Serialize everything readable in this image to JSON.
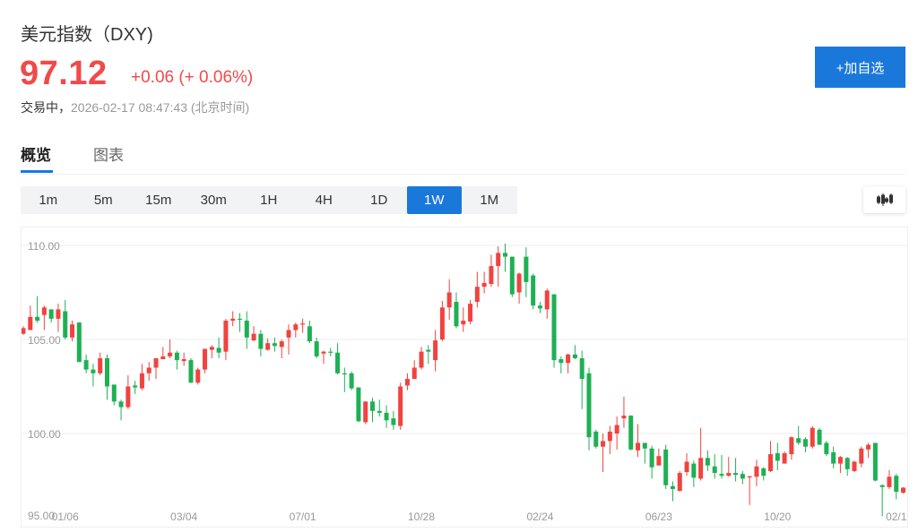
{
  "header": {
    "title": "美元指数（DXY)",
    "price": "97.12",
    "change": "+0.06 (+ 0.06%)",
    "status": "交易中，",
    "timestamp": "2026-02-17 08:47:43",
    "timezone_note": "(北京时间)",
    "watchlist_button": "+加自选"
  },
  "colors": {
    "up": "#f0433f",
    "down": "#1eb054",
    "accent": "#1a78db",
    "price": "#f04a4a"
  },
  "tabs": [
    {
      "label": "概览",
      "active": true
    },
    {
      "label": "图表",
      "active": false
    }
  ],
  "intervals": [
    {
      "label": "1m"
    },
    {
      "label": "5m"
    },
    {
      "label": "15m"
    },
    {
      "label": "30m"
    },
    {
      "label": "1H"
    },
    {
      "label": "4H"
    },
    {
      "label": "1D"
    },
    {
      "label": "1W",
      "active": true
    },
    {
      "label": "1M"
    }
  ],
  "chart_type_icon": "candlestick-icon",
  "chart_data": {
    "type": "candlestick",
    "interval": "1W",
    "y_ticks": [
      "110.00",
      "105.00",
      "100.00",
      "95.00"
    ],
    "y_tick_values": [
      110,
      105,
      100,
      95
    ],
    "ylim": [
      95,
      110
    ],
    "grid": true,
    "x_tick_labels": [
      {
        "label": "01/06",
        "candle": 6
      },
      {
        "label": "03/04",
        "candle": 23
      },
      {
        "label": "07/01",
        "candle": 40
      },
      {
        "label": "10/28",
        "candle": 57
      },
      {
        "label": "02/24",
        "candle": 74
      },
      {
        "label": "06/23",
        "candle": 91
      },
      {
        "label": "10/20",
        "candle": 108
      },
      {
        "label": "02/1",
        "candle": 125
      }
    ],
    "ohlc": [
      [
        105.3,
        105.7,
        105.25,
        105.6
      ],
      [
        105.5,
        106.8,
        105.5,
        106.2
      ],
      [
        106.2,
        107.3,
        105.9,
        106.0
      ],
      [
        106.3,
        106.8,
        105.5,
        106.7
      ],
      [
        106.6,
        106.6,
        105.9,
        106.1
      ],
      [
        106.1,
        106.9,
        105.4,
        106.6
      ],
      [
        106.5,
        107.1,
        105.0,
        105.1
      ],
      [
        105.1,
        106.0,
        104.9,
        105.8
      ],
      [
        105.9,
        105.9,
        103.8,
        103.8
      ],
      [
        103.9,
        104.2,
        103.2,
        103.4
      ],
      [
        103.4,
        103.7,
        102.5,
        103.2
      ],
      [
        103.2,
        104.3,
        103.1,
        104.0
      ],
      [
        104.0,
        104.2,
        101.8,
        102.5
      ],
      [
        102.6,
        102.6,
        101.5,
        101.7
      ],
      [
        101.7,
        101.8,
        100.7,
        101.4
      ],
      [
        101.4,
        103.1,
        101.3,
        102.5
      ],
      [
        102.55,
        102.8,
        102.1,
        102.45
      ],
      [
        102.4,
        103.7,
        102.3,
        103.2
      ],
      [
        103.2,
        103.8,
        102.8,
        103.5
      ],
      [
        103.5,
        104.0,
        102.9,
        104.0
      ],
      [
        103.95,
        104.6,
        103.95,
        104.1
      ],
      [
        104.1,
        105.0,
        104.0,
        104.3
      ],
      [
        104.3,
        104.4,
        103.4,
        103.9
      ],
      [
        103.85,
        104.3,
        103.6,
        103.95
      ],
      [
        103.9,
        104.0,
        102.7,
        102.7
      ],
      [
        102.7,
        103.5,
        102.6,
        103.4
      ],
      [
        103.4,
        104.5,
        103.2,
        104.5
      ],
      [
        104.45,
        104.7,
        104.0,
        104.6
      ],
      [
        104.55,
        105.1,
        104.0,
        104.3
      ],
      [
        104.35,
        106.1,
        103.9,
        106.0
      ],
      [
        106.0,
        106.5,
        105.7,
        106.1
      ],
      [
        106.1,
        106.4,
        105.4,
        106.05
      ],
      [
        106.0,
        106.5,
        104.5,
        105.1
      ],
      [
        104.95,
        105.7,
        104.9,
        105.3
      ],
      [
        105.3,
        105.5,
        104.1,
        104.5
      ],
      [
        104.45,
        105.05,
        104.4,
        104.8
      ],
      [
        104.8,
        105.1,
        104.35,
        104.65
      ],
      [
        104.6,
        105.0,
        104.0,
        104.9
      ],
      [
        105.1,
        105.8,
        104.2,
        105.5
      ],
      [
        105.5,
        105.9,
        105.1,
        105.8
      ],
      [
        105.8,
        106.1,
        105.35,
        105.85
      ],
      [
        105.7,
        106.0,
        104.8,
        104.9
      ],
      [
        104.9,
        105.1,
        104.0,
        104.1
      ],
      [
        104.25,
        104.4,
        103.7,
        104.35
      ],
      [
        104.35,
        104.55,
        104.1,
        104.3
      ],
      [
        104.3,
        104.8,
        103.15,
        103.2
      ],
      [
        103.2,
        103.5,
        102.2,
        103.15
      ],
      [
        103.2,
        103.3,
        102.3,
        102.4
      ],
      [
        102.45,
        102.45,
        100.6,
        100.65
      ],
      [
        100.6,
        101.7,
        100.5,
        101.7
      ],
      [
        101.7,
        101.9,
        100.6,
        101.2
      ],
      [
        101.2,
        101.8,
        100.9,
        101.1
      ],
      [
        101.1,
        101.5,
        100.3,
        100.7
      ],
      [
        100.8,
        101.2,
        100.2,
        100.45
      ],
      [
        100.4,
        102.7,
        100.2,
        102.5
      ],
      [
        102.55,
        103.2,
        102.3,
        102.9
      ],
      [
        102.9,
        103.9,
        102.9,
        103.5
      ],
      [
        103.5,
        104.6,
        103.4,
        104.35
      ],
      [
        104.45,
        104.7,
        103.7,
        104.35
      ],
      [
        103.9,
        105.5,
        103.3,
        104.95
      ],
      [
        105.0,
        107.05,
        104.9,
        106.7
      ],
      [
        106.7,
        108.2,
        106.05,
        107.5
      ],
      [
        107.0,
        107.5,
        105.6,
        105.7
      ],
      [
        105.8,
        106.7,
        105.4,
        106.0
      ],
      [
        105.95,
        107.1,
        105.8,
        106.9
      ],
      [
        107.0,
        108.6,
        106.7,
        107.8
      ],
      [
        107.8,
        108.6,
        107.45,
        108.0
      ],
      [
        107.95,
        109.5,
        107.8,
        108.9
      ],
      [
        108.9,
        109.95,
        107.8,
        109.6
      ],
      [
        109.6,
        110.1,
        108.6,
        109.4
      ],
      [
        109.4,
        109.4,
        107.25,
        107.4
      ],
      [
        107.5,
        108.55,
        106.9,
        108.5
      ],
      [
        109.4,
        109.9,
        107.25,
        108.05
      ],
      [
        108.4,
        108.5,
        106.6,
        106.8
      ],
      [
        106.8,
        107.0,
        106.4,
        106.65
      ],
      [
        106.6,
        107.7,
        106.1,
        107.6
      ],
      [
        107.4,
        107.4,
        103.5,
        103.9
      ],
      [
        103.95,
        104.1,
        103.2,
        103.75
      ],
      [
        103.75,
        104.25,
        103.2,
        104.2
      ],
      [
        104.2,
        104.7,
        103.95,
        104.0
      ],
      [
        104.0,
        104.4,
        101.3,
        102.9
      ],
      [
        103.2,
        103.5,
        99.1,
        99.8
      ],
      [
        100.1,
        100.2,
        99.2,
        99.3
      ],
      [
        99.3,
        100.0,
        97.95,
        99.6
      ],
      [
        99.6,
        100.4,
        98.9,
        100.1
      ],
      [
        100.0,
        100.9,
        99.15,
        100.45
      ],
      [
        100.8,
        101.96,
        100.3,
        100.95
      ],
      [
        100.95,
        100.97,
        99.1,
        99.15
      ],
      [
        99.1,
        100.5,
        98.75,
        99.5
      ],
      [
        99.5,
        99.5,
        98.4,
        99.2
      ],
      [
        99.2,
        99.35,
        97.6,
        98.2
      ],
      [
        98.3,
        99.2,
        98.3,
        98.8
      ],
      [
        99.15,
        99.4,
        97.05,
        97.25
      ],
      [
        97.2,
        97.45,
        96.4,
        97.05
      ],
      [
        96.95,
        98.0,
        96.9,
        97.9
      ],
      [
        97.95,
        98.95,
        97.75,
        98.5
      ],
      [
        98.4,
        98.55,
        97.15,
        97.65
      ],
      [
        97.6,
        100.3,
        97.5,
        98.7
      ],
      [
        98.7,
        99.1,
        98.0,
        98.3
      ],
      [
        98.25,
        98.9,
        97.6,
        97.9
      ],
      [
        97.85,
        98.85,
        97.6,
        97.75
      ],
      [
        97.75,
        98.75,
        97.7,
        97.9
      ],
      [
        97.9,
        98.7,
        97.45,
        97.8
      ],
      [
        97.85,
        98.0,
        97.3,
        97.6
      ],
      [
        97.7,
        97.75,
        96.2,
        97.72
      ],
      [
        97.7,
        98.6,
        97.2,
        98.25
      ],
      [
        98.15,
        98.2,
        97.5,
        97.75
      ],
      [
        98.0,
        99.6,
        97.95,
        98.9
      ],
      [
        98.95,
        99.5,
        98.05,
        98.55
      ],
      [
        98.4,
        99.05,
        98.4,
        98.95
      ],
      [
        98.9,
        99.85,
        98.6,
        99.8
      ],
      [
        99.75,
        100.4,
        99.4,
        99.5
      ],
      [
        99.7,
        99.8,
        99.0,
        99.3
      ],
      [
        99.3,
        100.4,
        99.2,
        100.3
      ],
      [
        100.2,
        100.3,
        99.4,
        99.4
      ],
      [
        99.5,
        99.6,
        98.8,
        98.9
      ],
      [
        99.0,
        99.3,
        98.15,
        98.4
      ],
      [
        98.4,
        98.8,
        97.9,
        98.75
      ],
      [
        98.7,
        98.75,
        97.75,
        98.1
      ],
      [
        98.0,
        98.55,
        97.95,
        98.5
      ],
      [
        98.4,
        99.3,
        98.2,
        99.2
      ],
      [
        99.15,
        99.5,
        98.7,
        99.4
      ],
      [
        99.5,
        99.5,
        97.45,
        97.5
      ],
      [
        97.25,
        97.3,
        95.6,
        97.15
      ],
      [
        97.15,
        98.05,
        97.05,
        97.7
      ],
      [
        97.75,
        97.85,
        96.5,
        96.9
      ],
      [
        96.85,
        97.15,
        96.8,
        97.12
      ]
    ]
  }
}
